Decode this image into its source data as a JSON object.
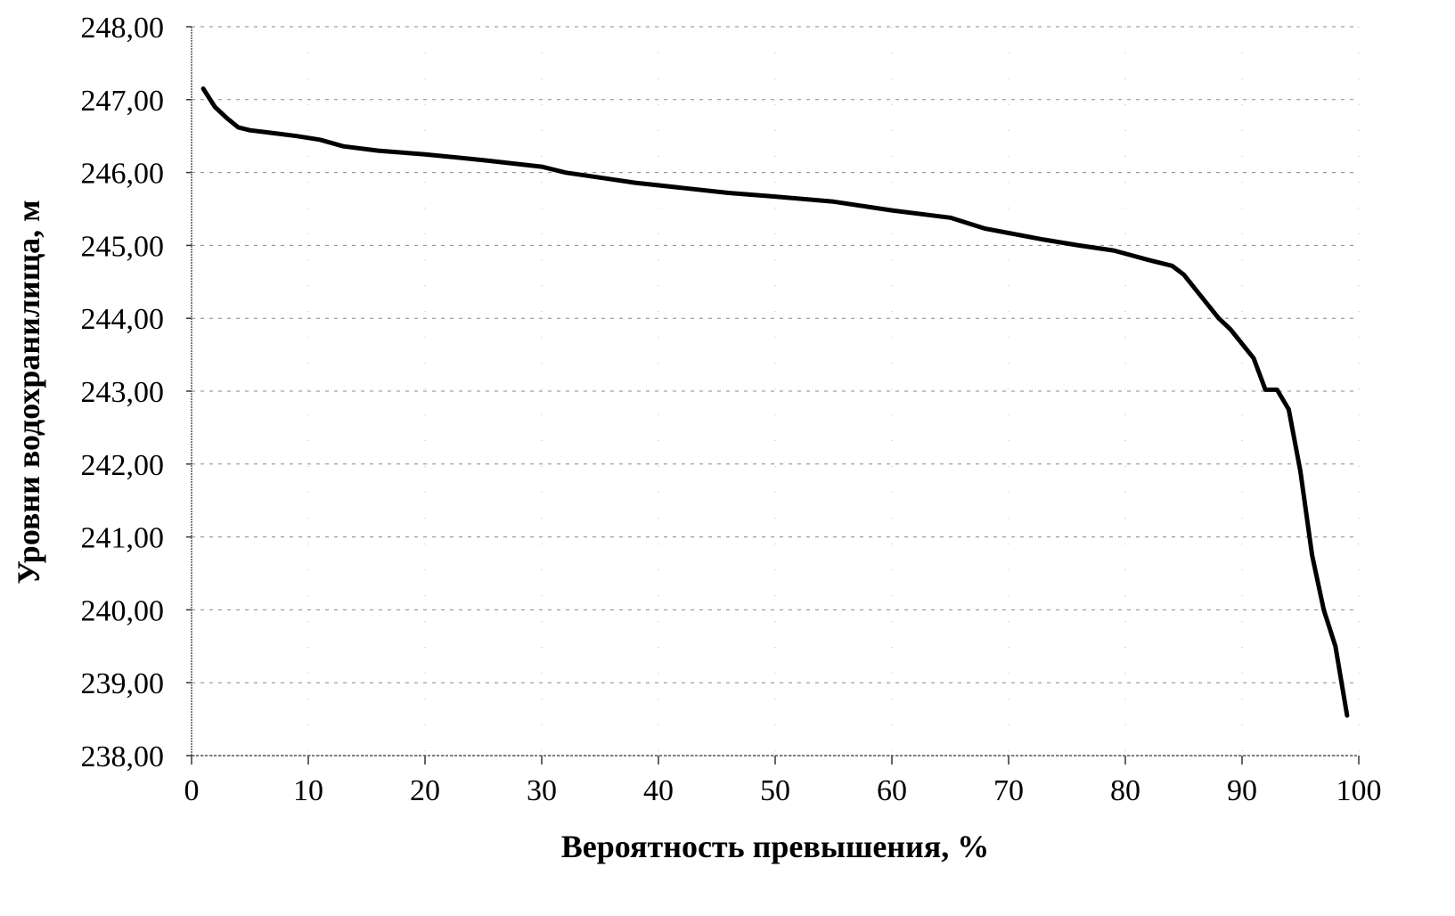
{
  "chart_data": {
    "type": "line",
    "title": "",
    "xlabel": "Вероятность превышения, %",
    "ylabel": "Уровни водохранилища, м",
    "xlim": [
      0,
      100
    ],
    "ylim": [
      238,
      248
    ],
    "x_ticks": [
      "0",
      "10",
      "20",
      "30",
      "40",
      "50",
      "60",
      "70",
      "80",
      "90",
      "100"
    ],
    "y_ticks": [
      "248,00",
      "247,00",
      "246,00",
      "245,00",
      "244,00",
      "243,00",
      "242,00",
      "241,00",
      "240,00",
      "239,00",
      "238,00"
    ],
    "grid": true,
    "legend": null,
    "series": [
      {
        "name": "Уровни водохранилища",
        "color": "#000000",
        "x": [
          1,
          2,
          3,
          4,
          5,
          7,
          9,
          11,
          13,
          16,
          20,
          25,
          30,
          32,
          35,
          38,
          42,
          46,
          50,
          55,
          60,
          65,
          68,
          70,
          73,
          76,
          79,
          82,
          84,
          85,
          86,
          88,
          89,
          90,
          91,
          92,
          93,
          94,
          95,
          96,
          97,
          98,
          99
        ],
        "values": [
          247.15,
          246.9,
          246.75,
          246.62,
          246.58,
          246.54,
          246.5,
          246.45,
          246.36,
          246.3,
          246.25,
          246.17,
          246.08,
          246.0,
          245.93,
          245.86,
          245.79,
          245.72,
          245.67,
          245.6,
          245.48,
          245.38,
          245.23,
          245.17,
          245.08,
          245.0,
          244.93,
          244.8,
          244.72,
          244.6,
          244.4,
          244.0,
          243.85,
          243.65,
          243.45,
          243.02,
          243.02,
          242.75,
          241.9,
          240.75,
          240.0,
          239.5,
          238.55
        ]
      }
    ]
  },
  "axes": {
    "x_title": "Вероятность превышения, %",
    "y_title": "Уровни водохранилища, м"
  }
}
